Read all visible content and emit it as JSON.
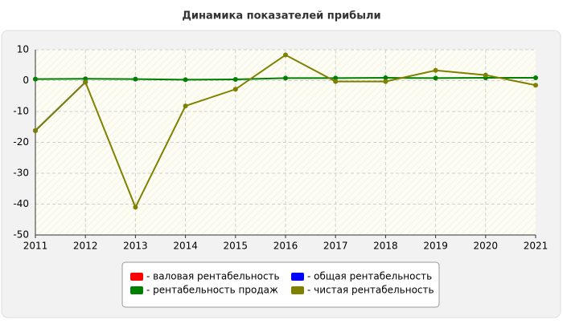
{
  "chart_data": {
    "type": "line",
    "title": "Динамика показателей прибыли",
    "categories": [
      "2011",
      "2012",
      "2013",
      "2014",
      "2015",
      "2016",
      "2017",
      "2018",
      "2019",
      "2020",
      "2021"
    ],
    "ylim": [
      -50,
      10
    ],
    "yticks": [
      -50,
      -40,
      -30,
      -20,
      -10,
      0,
      10
    ],
    "grid": true,
    "series": [
      {
        "name": "- валовая рентабельность",
        "color": "#ff0000",
        "values": [
          null,
          null,
          null,
          null,
          null,
          null,
          null,
          null,
          null,
          null,
          null
        ]
      },
      {
        "name": "- общая рентабельность",
        "color": "#0000ff",
        "values": [
          -16.2,
          -0.5,
          null,
          null,
          null,
          null,
          null,
          null,
          null,
          null,
          null
        ]
      },
      {
        "name": "- рентабельность продаж",
        "color": "#008000",
        "values": [
          0.5,
          0.6,
          0.5,
          0.3,
          0.4,
          0.8,
          0.8,
          0.9,
          0.8,
          0.9,
          0.9
        ]
      },
      {
        "name": "- чистая рентабельность",
        "color": "#808000",
        "values": [
          -16.2,
          -0.5,
          -41,
          -8.2,
          -2.8,
          8.3,
          -0.3,
          -0.3,
          3.3,
          1.8,
          -1.5
        ]
      }
    ]
  }
}
